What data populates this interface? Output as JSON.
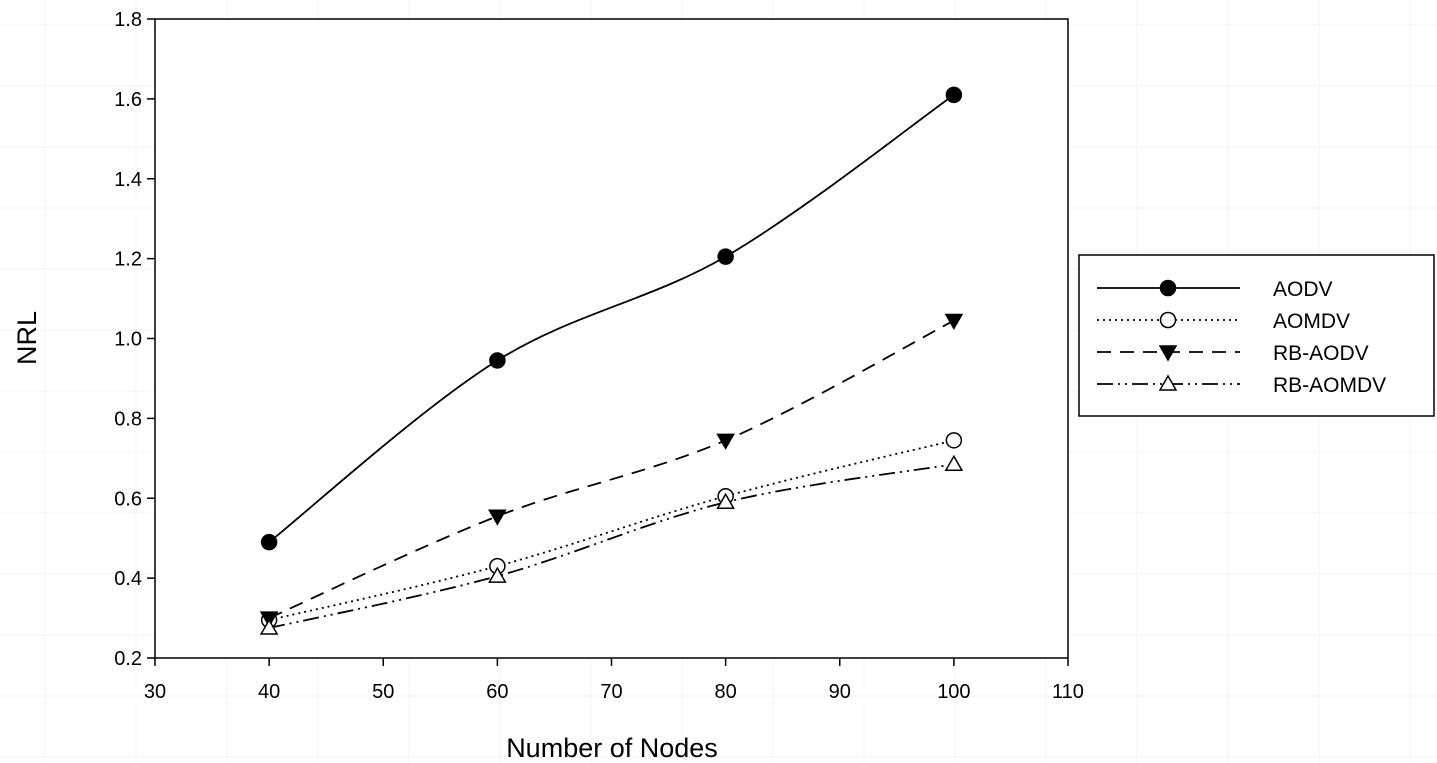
{
  "chart_data": {
    "type": "line",
    "title": "",
    "xlabel": "Number of Nodes",
    "ylabel": "NRL",
    "xlim": [
      30,
      110
    ],
    "ylim": [
      0.2,
      1.8
    ],
    "x_ticks": [
      30,
      40,
      50,
      60,
      70,
      80,
      90,
      100,
      110
    ],
    "y_ticks": [
      "0.2",
      "0.4",
      "0.6",
      "0.8",
      "1.0",
      "1.2",
      "1.4",
      "1.6",
      "1.8"
    ],
    "grid": false,
    "legend_position": "right",
    "x": [
      40,
      60,
      80,
      100
    ],
    "series": [
      {
        "name": "AODV",
        "values": [
          0.49,
          0.945,
          1.205,
          1.61
        ],
        "line": "solid",
        "marker": "filled-circle"
      },
      {
        "name": "AOMDV",
        "values": [
          0.295,
          0.43,
          0.605,
          0.745
        ],
        "line": "dotted",
        "marker": "open-circle"
      },
      {
        "name": "RB-AODV",
        "values": [
          0.3,
          0.555,
          0.745,
          1.045
        ],
        "line": "dashed",
        "marker": "filled-triangle-down"
      },
      {
        "name": "RB-AOMDV",
        "values": [
          0.275,
          0.405,
          0.59,
          0.685
        ],
        "line": "dash-dot-dot",
        "marker": "open-triangle-up"
      }
    ]
  }
}
